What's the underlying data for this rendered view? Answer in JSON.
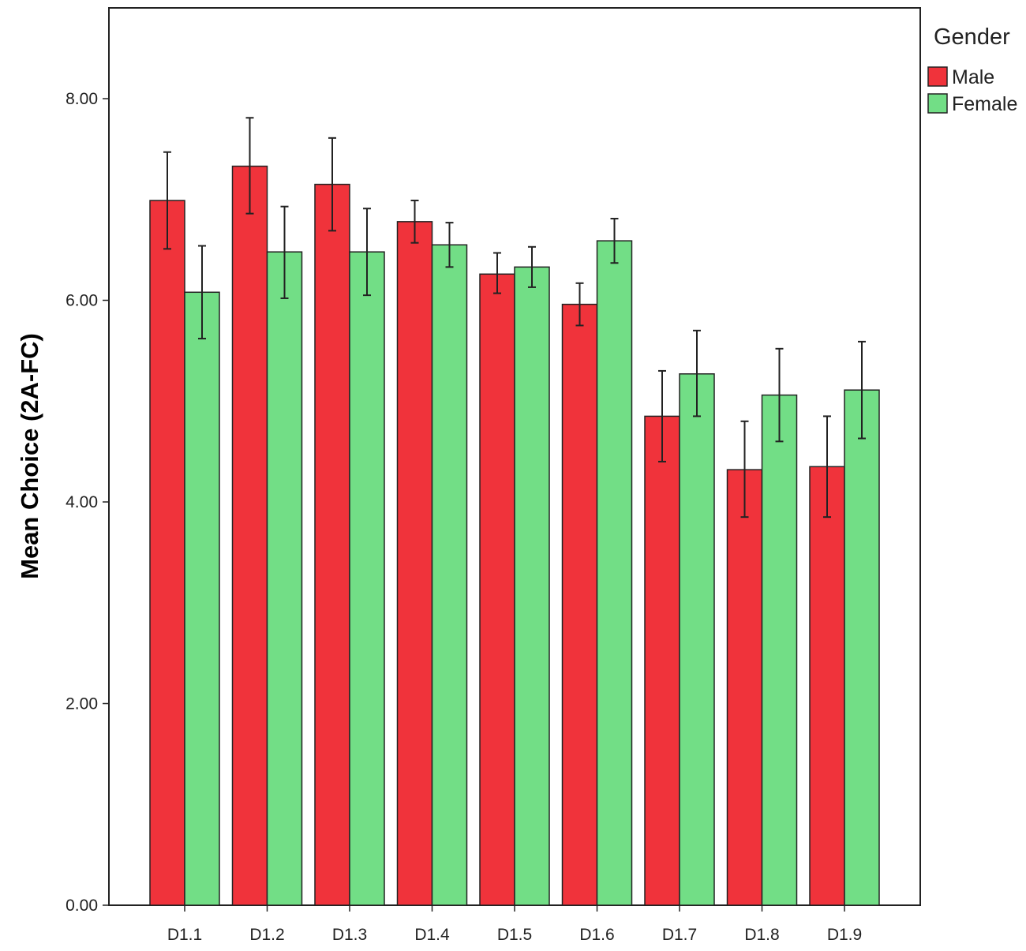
{
  "chart_data": {
    "type": "bar",
    "categories": [
      "D1.1",
      "D1.2",
      "D1.3",
      "D1.4",
      "D1.5",
      "D1.6",
      "D1.7",
      "D1.8",
      "D1.9"
    ],
    "series": [
      {
        "name": "Male",
        "color": "#f0333b",
        "values": [
          6.99,
          7.33,
          7.15,
          6.78,
          6.26,
          5.96,
          4.85,
          4.32,
          4.35
        ],
        "error_low": [
          6.51,
          6.86,
          6.69,
          6.57,
          6.07,
          5.75,
          4.4,
          3.85,
          3.85
        ],
        "error_high": [
          7.47,
          7.81,
          7.61,
          6.99,
          6.47,
          6.17,
          5.3,
          4.8,
          4.85
        ]
      },
      {
        "name": "Female",
        "color": "#72de86",
        "values": [
          6.08,
          6.48,
          6.48,
          6.55,
          6.33,
          6.59,
          5.27,
          5.06,
          5.11
        ],
        "error_low": [
          5.62,
          6.02,
          6.05,
          6.33,
          6.13,
          6.37,
          4.85,
          4.6,
          4.63
        ],
        "error_high": [
          6.54,
          6.93,
          6.91,
          6.77,
          6.53,
          6.81,
          5.7,
          5.52,
          5.59
        ]
      }
    ],
    "yticks": [
      "0.00",
      "2.00",
      "4.00",
      "6.00",
      "8.00"
    ],
    "ylim": [
      0,
      8.9
    ],
    "xlabel": "",
    "ylabel": "Mean Choice (2A-FC)",
    "legend": {
      "title": "Gender",
      "position": "top-right"
    },
    "grid": false
  }
}
